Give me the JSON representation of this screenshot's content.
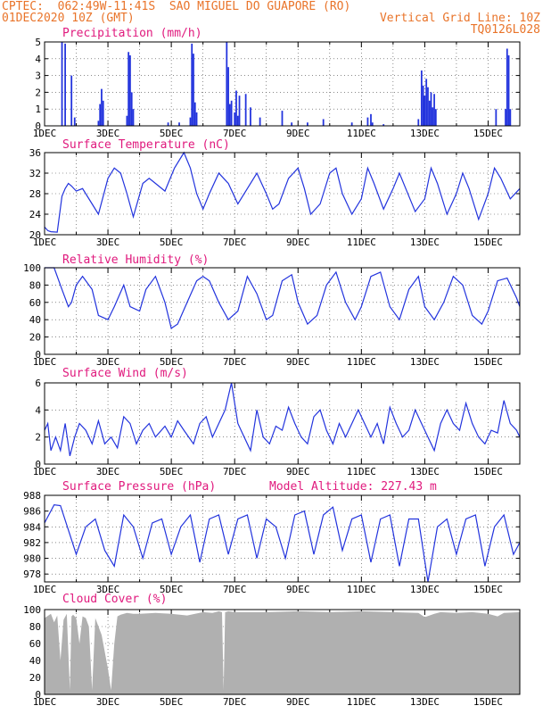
{
  "header": {
    "line1": "CPTEC:  062:49W-11:41S  SAO MIGUEL DO GUAPORE (RO)",
    "line2_left": "01DEC2020 10Z (GMT)",
    "line2_right": "Vertical Grid Line: 10Z",
    "line3_right": "TQ0126L028"
  },
  "colors": {
    "header": "#e9742a",
    "title": "#e0197d",
    "line": "#2233dd",
    "cloud": "#b0b0b0"
  },
  "x_ticks": [
    "1DEC",
    "3DEC",
    "5DEC",
    "7DEC",
    "9DEC",
    "11DEC",
    "13DEC",
    "15DEC"
  ],
  "chart_data": [
    {
      "type": "bar",
      "title": "Precipitation (mm/h)",
      "ylim": [
        0,
        5
      ],
      "yticks": [
        "0",
        "1",
        "2",
        "3",
        "4",
        "5"
      ],
      "x_unit": "days after 01DEC2020 10Z",
      "values": [
        [
          0.55,
          5
        ],
        [
          0.65,
          4.9
        ],
        [
          0.85,
          3
        ],
        [
          0.95,
          0.5
        ],
        [
          1.7,
          0.3
        ],
        [
          1.75,
          1.3
        ],
        [
          1.8,
          2.2
        ],
        [
          1.85,
          1.5
        ],
        [
          2.6,
          0.6
        ],
        [
          2.65,
          4.4
        ],
        [
          2.7,
          4.2
        ],
        [
          2.75,
          2
        ],
        [
          2.8,
          1
        ],
        [
          3.9,
          0.2
        ],
        [
          4.25,
          0.2
        ],
        [
          4.6,
          0.5
        ],
        [
          4.65,
          4.9
        ],
        [
          4.7,
          4.3
        ],
        [
          4.75,
          1.4
        ],
        [
          4.8,
          0.8
        ],
        [
          5.75,
          5
        ],
        [
          5.8,
          3.5
        ],
        [
          5.85,
          1.3
        ],
        [
          5.9,
          1.5
        ],
        [
          6.0,
          0.8
        ],
        [
          6.05,
          2.1
        ],
        [
          6.1,
          0.6
        ],
        [
          6.15,
          1.8
        ],
        [
          6.35,
          1.9
        ],
        [
          6.5,
          1.1
        ],
        [
          6.8,
          0.5
        ],
        [
          7.5,
          0.9
        ],
        [
          7.8,
          0.2
        ],
        [
          8.3,
          0.2
        ],
        [
          8.8,
          0.4
        ],
        [
          9.7,
          0.2
        ],
        [
          10.2,
          0.5
        ],
        [
          10.3,
          0.7
        ],
        [
          10.35,
          0.2
        ],
        [
          10.7,
          0.1
        ],
        [
          11.8,
          0.4
        ],
        [
          11.9,
          3.3
        ],
        [
          11.95,
          2.4
        ],
        [
          12.0,
          1.8
        ],
        [
          12.05,
          2.8
        ],
        [
          12.1,
          2.3
        ],
        [
          12.15,
          1.5
        ],
        [
          12.2,
          2.0
        ],
        [
          12.25,
          1.1
        ],
        [
          12.3,
          1.9
        ],
        [
          12.35,
          1.0
        ],
        [
          14.25,
          1.0
        ],
        [
          14.55,
          1.0
        ],
        [
          14.6,
          4.6
        ],
        [
          14.65,
          4.2
        ],
        [
          14.7,
          1.0
        ]
      ]
    },
    {
      "type": "line",
      "title": "Surface Temperature (nC)",
      "ylim": [
        20,
        36
      ],
      "yticks": [
        "20",
        "24",
        "28",
        "32",
        "36"
      ],
      "x": [
        0,
        0.1,
        0.2,
        0.4,
        0.55,
        0.65,
        0.75,
        0.85,
        1.0,
        1.2,
        1.5,
        1.7,
        2.0,
        2.2,
        2.4,
        2.6,
        2.8,
        3.1,
        3.3,
        3.5,
        3.8,
        4.1,
        4.4,
        4.6,
        4.8,
        5.0,
        5.2,
        5.5,
        5.8,
        6.1,
        6.4,
        6.7,
        7.0,
        7.2,
        7.4,
        7.7,
        8.0,
        8.2,
        8.4,
        8.7,
        9.0,
        9.2,
        9.4,
        9.7,
        10.0,
        10.2,
        10.4,
        10.7,
        11.0,
        11.2,
        11.4,
        11.7,
        12.0,
        12.2,
        12.4,
        12.7,
        13.0,
        13.2,
        13.4,
        13.7,
        14.0,
        14.2,
        14.4,
        14.7,
        15.0
      ],
      "y": [
        21.5,
        20.8,
        20.6,
        20.5,
        27.5,
        29,
        30,
        29.5,
        28.5,
        29,
        26,
        24,
        31,
        33,
        32,
        28,
        23.5,
        30,
        31,
        30,
        28.5,
        33,
        36,
        33,
        28,
        25,
        28,
        32,
        30,
        26,
        29,
        32,
        28,
        25,
        26,
        31,
        33,
        29,
        24,
        26,
        32,
        33,
        28,
        24,
        27,
        33,
        30,
        25,
        29,
        32,
        29,
        24.5,
        27,
        33,
        30,
        24,
        28,
        32,
        29,
        23,
        28,
        33,
        31,
        27,
        29
      ]
    },
    {
      "type": "line",
      "title": "Relative Humidity (%)",
      "ylim": [
        0,
        100
      ],
      "yticks": [
        "0",
        "20",
        "40",
        "60",
        "80",
        "100"
      ],
      "x": [
        0,
        0.3,
        0.55,
        0.75,
        0.85,
        1.0,
        1.2,
        1.5,
        1.7,
        2.0,
        2.2,
        2.5,
        2.7,
        3.0,
        3.2,
        3.5,
        3.8,
        4.0,
        4.2,
        4.5,
        4.8,
        5.0,
        5.2,
        5.5,
        5.8,
        6.1,
        6.4,
        6.7,
        7.0,
        7.2,
        7.5,
        7.8,
        8.0,
        8.3,
        8.6,
        8.9,
        9.2,
        9.5,
        9.8,
        10.0,
        10.3,
        10.6,
        10.9,
        11.2,
        11.5,
        11.8,
        12.0,
        12.3,
        12.6,
        12.9,
        13.2,
        13.5,
        13.8,
        14.0,
        14.3,
        14.6,
        14.9,
        15.0
      ],
      "y": [
        100,
        100,
        75,
        55,
        60,
        80,
        90,
        75,
        45,
        40,
        55,
        80,
        55,
        50,
        75,
        90,
        60,
        30,
        35,
        60,
        85,
        90,
        85,
        60,
        40,
        50,
        90,
        70,
        40,
        45,
        85,
        92,
        60,
        35,
        45,
        80,
        95,
        60,
        40,
        55,
        90,
        95,
        55,
        40,
        75,
        90,
        55,
        40,
        60,
        90,
        80,
        45,
        35,
        50,
        85,
        88,
        65,
        55
      ]
    },
    {
      "type": "line",
      "title": "Surface Wind (m/s)",
      "ylim": [
        0,
        6
      ],
      "yticks": [
        "0",
        "2",
        "4",
        "6"
      ],
      "x": [
        0,
        0.1,
        0.2,
        0.35,
        0.5,
        0.65,
        0.8,
        0.95,
        1.1,
        1.3,
        1.5,
        1.7,
        1.9,
        2.1,
        2.3,
        2.5,
        2.7,
        2.9,
        3.1,
        3.3,
        3.5,
        3.8,
        4.0,
        4.2,
        4.4,
        4.7,
        4.9,
        5.1,
        5.3,
        5.5,
        5.7,
        5.9,
        6.1,
        6.3,
        6.5,
        6.7,
        6.9,
        7.1,
        7.3,
        7.5,
        7.7,
        7.9,
        8.1,
        8.3,
        8.5,
        8.7,
        8.9,
        9.1,
        9.3,
        9.5,
        9.7,
        9.9,
        10.1,
        10.3,
        10.5,
        10.7,
        10.9,
        11.1,
        11.3,
        11.5,
        11.7,
        11.9,
        12.1,
        12.3,
        12.5,
        12.7,
        12.9,
        13.1,
        13.3,
        13.5,
        13.7,
        13.9,
        14.1,
        14.3,
        14.5,
        14.7,
        14.9,
        15.0
      ],
      "y": [
        2.5,
        3,
        1,
        2,
        1,
        3,
        0.6,
        2,
        3,
        2.5,
        1.5,
        3.2,
        1.5,
        2,
        1.2,
        3.5,
        3,
        1.5,
        2.5,
        3,
        2,
        2.8,
        2,
        3.2,
        2.5,
        1.5,
        3,
        3.5,
        2,
        3,
        4,
        6,
        3,
        2,
        1,
        4,
        2,
        1.5,
        2.8,
        2.5,
        4.2,
        3,
        2,
        1.5,
        3.5,
        4,
        2.5,
        1.5,
        3,
        2,
        3,
        4,
        3,
        2,
        3,
        1.5,
        4.2,
        3,
        2,
        2.5,
        4,
        3,
        2,
        1,
        3,
        4,
        3,
        2.5,
        4.5,
        3,
        2,
        1.5,
        2.5,
        2.3,
        4.7,
        3,
        2.5,
        2
      ]
    },
    {
      "type": "line",
      "title": "Surface Pressure (hPa)",
      "subtitle": "Model Altitude: 227.43 m",
      "ylim": [
        977,
        988
      ],
      "yticks": [
        "978",
        "980",
        "982",
        "984",
        "986",
        "988"
      ],
      "x": [
        0,
        0.3,
        0.5,
        0.8,
        1.0,
        1.3,
        1.6,
        1.9,
        2.2,
        2.5,
        2.8,
        3.1,
        3.4,
        3.7,
        4.0,
        4.3,
        4.6,
        4.9,
        5.2,
        5.5,
        5.8,
        6.1,
        6.4,
        6.7,
        7.0,
        7.3,
        7.6,
        7.9,
        8.2,
        8.5,
        8.8,
        9.1,
        9.4,
        9.7,
        10.0,
        10.3,
        10.6,
        10.9,
        11.2,
        11.5,
        11.8,
        12.1,
        12.4,
        12.7,
        13.0,
        13.3,
        13.6,
        13.9,
        14.2,
        14.5,
        14.8,
        15.0
      ],
      "y": [
        984.5,
        986.8,
        986.7,
        983,
        980.5,
        984,
        985,
        981,
        979,
        985.5,
        984,
        980,
        984.5,
        985,
        980.5,
        984,
        985.5,
        979.5,
        985,
        985.5,
        980.5,
        985,
        985.5,
        980,
        985,
        984,
        980,
        985.5,
        986,
        980.5,
        985.5,
        986.5,
        981,
        985,
        985.5,
        979.5,
        985,
        985.5,
        979,
        985,
        985,
        977,
        984,
        985,
        980.5,
        985,
        985.5,
        979,
        984,
        985.5,
        980.5,
        982
      ]
    },
    {
      "type": "area",
      "title": "Cloud Cover (%)",
      "ylim": [
        0,
        100
      ],
      "yticks": [
        "0",
        "20",
        "40",
        "60",
        "80",
        "100"
      ],
      "x": [
        0,
        0.2,
        0.3,
        0.4,
        0.5,
        0.6,
        0.7,
        0.8,
        0.85,
        0.9,
        1.0,
        1.1,
        1.2,
        1.3,
        1.4,
        1.5,
        1.6,
        1.8,
        2.0,
        2.1,
        2.2,
        2.3,
        2.4,
        2.5,
        2.6,
        2.8,
        3.0,
        3.5,
        4.0,
        4.5,
        5.0,
        5.3,
        5.5,
        5.6,
        5.65,
        5.7,
        5.8,
        6.0,
        7.0,
        8.0,
        9.0,
        10.0,
        11.0,
        11.8,
        12.0,
        12.3,
        12.5,
        13.0,
        13.5,
        14.0,
        14.3,
        14.5,
        15.0
      ],
      "y": [
        90,
        95,
        85,
        93,
        40,
        88,
        95,
        5,
        92,
        94,
        90,
        60,
        92,
        90,
        80,
        5,
        90,
        70,
        30,
        5,
        60,
        92,
        94,
        95,
        96,
        95,
        95,
        96,
        95,
        93,
        97,
        96,
        98,
        97,
        5,
        97,
        98,
        97,
        97,
        98,
        97,
        98,
        97,
        96,
        91,
        95,
        97,
        96,
        97,
        95,
        92,
        96,
        97
      ]
    }
  ]
}
